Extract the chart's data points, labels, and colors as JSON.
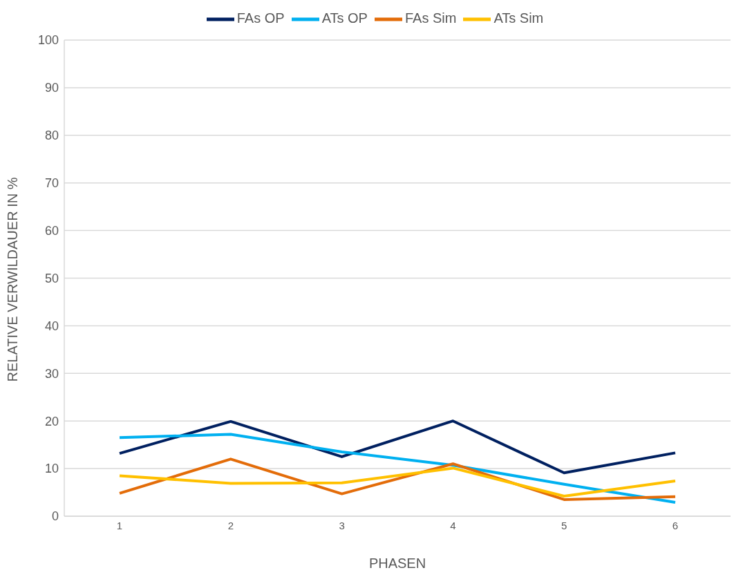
{
  "chart_data": {
    "type": "line",
    "xlabel": "PHASEN",
    "ylabel": "RELATIVE VERWILDAUER IN %",
    "categories": [
      "1",
      "2",
      "3",
      "4",
      "5",
      "6"
    ],
    "series": [
      {
        "name": "FAs OP",
        "color": "#002060",
        "values": [
          13.2,
          19.9,
          12.5,
          20.0,
          9.1,
          13.3
        ]
      },
      {
        "name": "ATs OP",
        "color": "#00b0f0",
        "values": [
          16.5,
          17.2,
          13.5,
          10.7,
          6.7,
          2.9
        ]
      },
      {
        "name": "FAs Sim",
        "color": "#e36c09",
        "values": [
          4.8,
          12.0,
          4.7,
          11.0,
          3.5,
          4.1
        ]
      },
      {
        "name": "ATs Sim",
        "color": "#ffc000",
        "values": [
          8.5,
          6.9,
          7.0,
          10.1,
          4.2,
          7.4
        ]
      }
    ],
    "ylim": [
      0,
      100
    ],
    "yticks": [
      0,
      10,
      20,
      30,
      40,
      50,
      60,
      70,
      80,
      90,
      100
    ],
    "grid": "y",
    "legend": "top",
    "marker": "none",
    "line_style": "solid"
  }
}
